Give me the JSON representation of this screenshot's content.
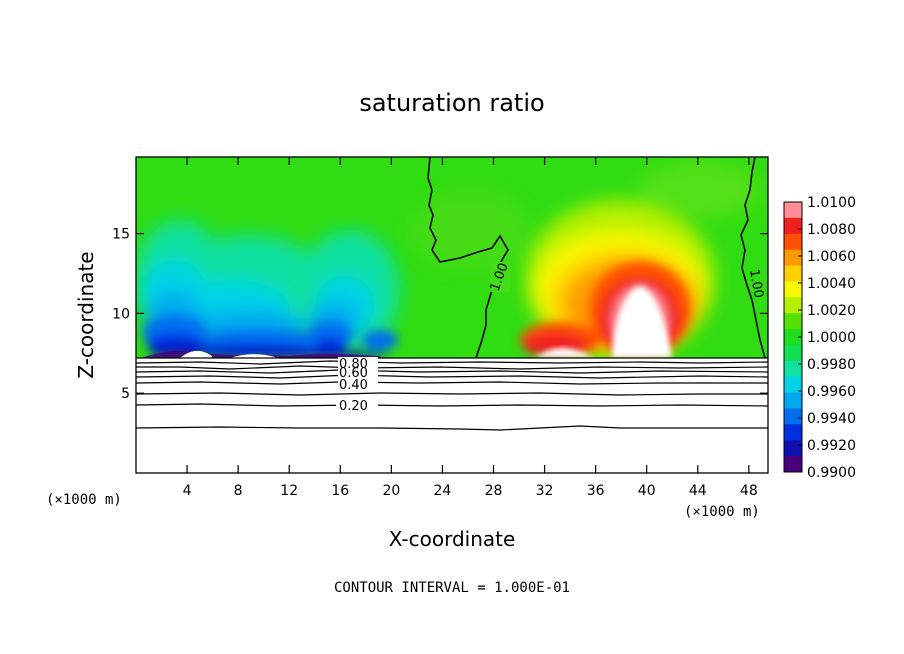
{
  "chart_data": {
    "type": "heatmap",
    "title": "saturation ratio",
    "xlabel": "X-coordinate",
    "ylabel": "Z-coordinate",
    "x_unit_label": "(×1000 m)",
    "y_unit_label": "(×1000 m)",
    "xlim": [
      0,
      49.5
    ],
    "ylim": [
      0,
      19.8
    ],
    "xticks": [
      "4",
      "8",
      "12",
      "16",
      "20",
      "24",
      "28",
      "32",
      "36",
      "40",
      "44",
      "48"
    ],
    "yticks": [
      "5",
      "10",
      "15"
    ],
    "footer": "CONTOUR INTERVAL = 1.000E-01",
    "colorbar": {
      "min": 0.99,
      "max": 1.01,
      "labels": [
        "1.0100",
        "1.0080",
        "1.0060",
        "1.0040",
        "1.0020",
        "1.0000",
        "0.9980",
        "0.9960",
        "0.9940",
        "0.9920",
        "0.9900"
      ],
      "colors": [
        "#ff8c96",
        "#f02020",
        "#ff5000",
        "#ff9900",
        "#ffd000",
        "#f8f800",
        "#b4f000",
        "#55e000",
        "#1ede1e",
        "#10e050",
        "#10e0a0",
        "#00d4e6",
        "#00a8f0",
        "#0070f0",
        "#0030e0",
        "#1010b0",
        "#4a007a"
      ]
    },
    "contour_labels": {
      "sat_left": "1.00",
      "sat_right": "1.00",
      "c080": "0.80",
      "c060": "0.60",
      "c040": "0.40",
      "c020": "0.20"
    },
    "contour_levels_lower": [
      0.2,
      0.4,
      0.6,
      0.8
    ],
    "contour_level_saturation": 1.0
  }
}
